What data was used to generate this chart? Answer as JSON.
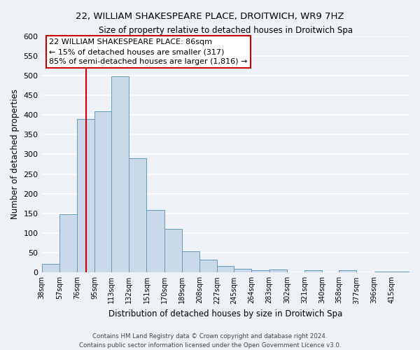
{
  "title": "22, WILLIAM SHAKESPEARE PLACE, DROITWICH, WR9 7HZ",
  "subtitle": "Size of property relative to detached houses in Droitwich Spa",
  "xlabel": "Distribution of detached houses by size in Droitwich Spa",
  "ylabel": "Number of detached properties",
  "bar_labels": [
    "38sqm",
    "57sqm",
    "76sqm",
    "95sqm",
    "113sqm",
    "132sqm",
    "151sqm",
    "170sqm",
    "189sqm",
    "208sqm",
    "227sqm",
    "245sqm",
    "264sqm",
    "283sqm",
    "302sqm",
    "321sqm",
    "340sqm",
    "358sqm",
    "377sqm",
    "396sqm",
    "415sqm"
  ],
  "bar_values": [
    22,
    148,
    390,
    410,
    498,
    290,
    158,
    110,
    53,
    32,
    17,
    10,
    5,
    8,
    0,
    5,
    0,
    5,
    0,
    3,
    2
  ],
  "bar_color": "#c9d9ea",
  "bar_edge_color": "#6699bb",
  "ylim": [
    0,
    600
  ],
  "yticks": [
    0,
    50,
    100,
    150,
    200,
    250,
    300,
    350,
    400,
    450,
    500,
    550,
    600
  ],
  "property_label": "22 WILLIAM SHAKESPEARE PLACE: 86sqm",
  "annotation_line1": "← 15% of detached houses are smaller (317)",
  "annotation_line2": "85% of semi-detached houses are larger (1,816) →",
  "vline_x": 86,
  "vline_color": "#cc0000",
  "annotation_box_color": "#ffffff",
  "annotation_box_edge_color": "#cc0000",
  "footer_line1": "Contains HM Land Registry data © Crown copyright and database right 2024.",
  "footer_line2": "Contains public sector information licensed under the Open Government Licence v3.0.",
  "background_color": "#eef2f7",
  "grid_color": "#ffffff"
}
